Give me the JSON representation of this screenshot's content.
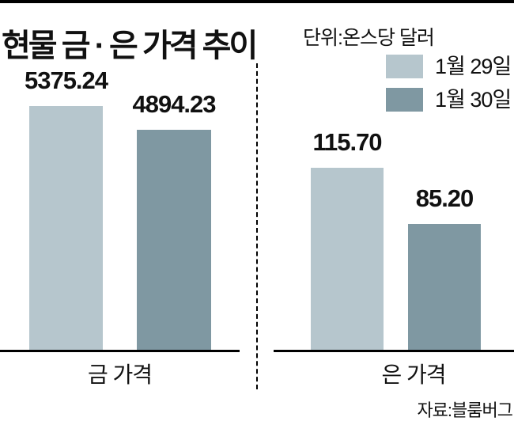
{
  "title": "현물 금 · 은 가격 추이",
  "unit_label": "단위:온스당 달러",
  "source": "자료:블룸버그",
  "colors": {
    "jan29": "#b6c6cd",
    "jan30": "#7f98a2"
  },
  "legend": [
    {
      "label": "1월 29일",
      "series": "jan29"
    },
    {
      "label": "1월 30일",
      "series": "jan30"
    }
  ],
  "chart_data": [
    {
      "type": "bar",
      "title": "금 가격",
      "categories": [
        "1월 29일",
        "1월 30일"
      ],
      "values": [
        5375.24,
        4894.23
      ],
      "value_labels": [
        "5375.24",
        "4894.23"
      ],
      "ylim": [
        420,
        5375.24
      ],
      "legend_position": "top-right",
      "grid": false,
      "unit": "온스당 달러 (달러)"
    },
    {
      "type": "bar",
      "title": "은 가격",
      "categories": [
        "1월 29일",
        "1월 30일"
      ],
      "values": [
        115.7,
        85.2
      ],
      "value_labels": [
        "115.70",
        "85.20"
      ],
      "ylim": [
        16.5,
        115.7
      ],
      "legend_position": "top-right",
      "grid": false,
      "unit": "온스당 달러 (달러)"
    }
  ]
}
